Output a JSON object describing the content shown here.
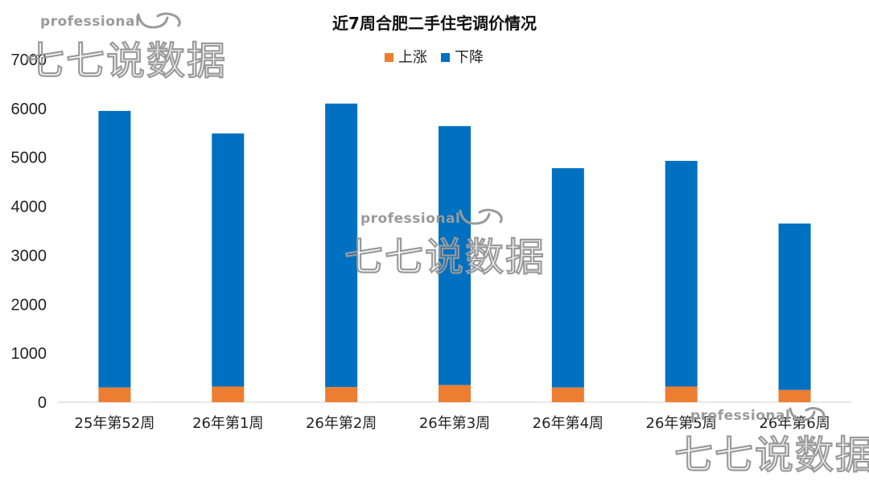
{
  "watermark": {
    "small": "professional",
    "big": "七七说数据",
    "color": "#9a9a9a"
  },
  "chart_data": {
    "type": "bar",
    "stacked": true,
    "title": "近7周合肥二手住宅调价情况",
    "categories": [
      "25年第52周",
      "26年第1周",
      "26年第2周",
      "26年第3周",
      "26年第4周",
      "26年第5周",
      "26年第6周"
    ],
    "series": [
      {
        "name": "上涨",
        "color": "#ed7d31",
        "values": [
          300,
          320,
          310,
          350,
          300,
          320,
          250
        ]
      },
      {
        "name": "下降",
        "color": "#0070c0",
        "values": [
          5650,
          5170,
          5790,
          5290,
          4480,
          4610,
          3400
        ]
      }
    ],
    "yticks": [
      0,
      1000,
      2000,
      3000,
      4000,
      5000,
      6000,
      7000
    ],
    "ylim": [
      0,
      7000
    ],
    "grid": false,
    "legend_position": "top-center"
  }
}
